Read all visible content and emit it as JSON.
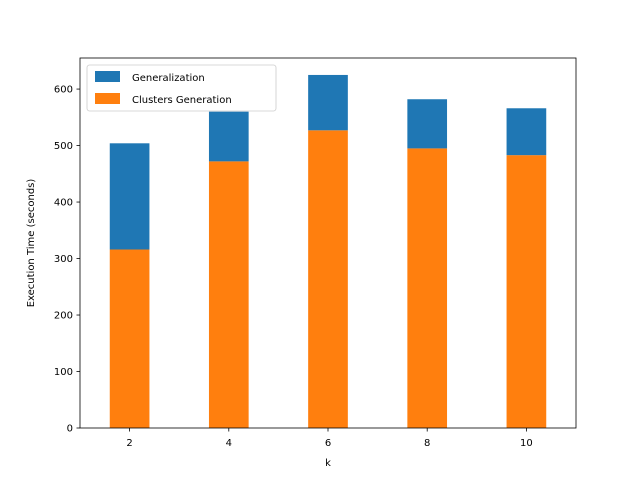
{
  "chart_data": {
    "type": "bar",
    "stacked": true,
    "title": "",
    "xlabel": "k",
    "ylabel": "Execution Time (seconds)",
    "categories": [
      "2",
      "4",
      "6",
      "8",
      "10"
    ],
    "series": [
      {
        "name": "Clusters Generation",
        "values": [
          316,
          472,
          527,
          495,
          483
        ],
        "color": "#ff7f0e"
      },
      {
        "name": "Generalization",
        "values": [
          188,
          88,
          98,
          87,
          83
        ],
        "color": "#1f77b4"
      }
    ],
    "totals": [
      504,
      560,
      625,
      582,
      566
    ],
    "ylim": [
      0,
      655
    ],
    "yticks": [
      0,
      100,
      200,
      300,
      400,
      500,
      600
    ],
    "legend": {
      "placement": "upper-left",
      "entries": [
        {
          "label": "Generalization",
          "color": "#1f77b4"
        },
        {
          "label": "Clusters Generation",
          "color": "#ff7f0e"
        }
      ]
    },
    "grid": false
  }
}
